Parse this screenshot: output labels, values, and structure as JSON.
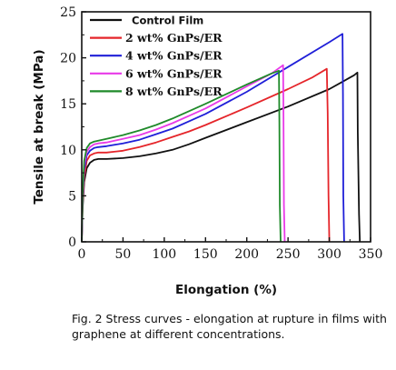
{
  "chart_data": {
    "type": "line",
    "title": "",
    "xlabel": "Elongation (%)",
    "ylabel": "Tensile at break (MPa)",
    "xlim": [
      0,
      350
    ],
    "ylim": [
      0,
      25
    ],
    "xticks": [
      0,
      50,
      100,
      150,
      200,
      250,
      300,
      350
    ],
    "yticks": [
      0,
      5,
      10,
      15,
      20,
      25
    ],
    "grid": false,
    "legend": "top-left",
    "series": [
      {
        "name": "Control Film",
        "color": "#111111",
        "x": [
          0,
          1,
          3,
          6,
          10,
          15,
          20,
          30,
          50,
          70,
          90,
          110,
          130,
          150,
          200,
          250,
          300,
          330,
          334,
          334.5,
          336,
          337
        ],
        "y": [
          0,
          3.5,
          6.5,
          8.0,
          8.6,
          8.9,
          9.0,
          9.0,
          9.1,
          9.3,
          9.6,
          10.0,
          10.6,
          11.3,
          13.0,
          14.7,
          16.6,
          18.1,
          18.4,
          12,
          3,
          0
        ]
      },
      {
        "name": "2 wt% GnPs/ER",
        "color": "#e5252a",
        "x": [
          0,
          1,
          3,
          6,
          10,
          15,
          20,
          30,
          50,
          70,
          90,
          110,
          130,
          150,
          200,
          250,
          280,
          297,
          298,
          299,
          300
        ],
        "y": [
          0,
          4.0,
          7.0,
          8.8,
          9.4,
          9.6,
          9.7,
          9.7,
          9.9,
          10.3,
          10.8,
          11.4,
          12.0,
          12.7,
          14.6,
          16.6,
          17.9,
          18.8,
          14,
          5,
          0
        ]
      },
      {
        "name": "4 wt% GnPs/ER",
        "color": "#1f1fd8",
        "x": [
          0,
          1,
          3,
          6,
          10,
          15,
          20,
          30,
          50,
          70,
          90,
          110,
          130,
          150,
          200,
          250,
          300,
          316,
          316.5,
          317,
          318
        ],
        "y": [
          0,
          4.5,
          7.8,
          9.4,
          9.9,
          10.2,
          10.3,
          10.4,
          10.7,
          11.1,
          11.7,
          12.3,
          13.1,
          13.9,
          16.3,
          19.0,
          21.7,
          22.6,
          16,
          5,
          0
        ]
      },
      {
        "name": "6 wt% GnPs/ER",
        "color": "#e83ae8",
        "x": [
          0,
          1,
          3,
          6,
          10,
          15,
          20,
          30,
          50,
          70,
          90,
          110,
          130,
          150,
          200,
          230,
          244,
          244.5,
          245,
          246
        ],
        "y": [
          0,
          4.8,
          8.3,
          9.8,
          10.3,
          10.6,
          10.7,
          10.8,
          11.2,
          11.6,
          12.2,
          12.9,
          13.7,
          14.5,
          16.9,
          18.3,
          19.2,
          14,
          4,
          0
        ]
      },
      {
        "name": "8 wt% GnPs/ER",
        "color": "#1f8a2a",
        "x": [
          0,
          1,
          3,
          6,
          10,
          15,
          20,
          30,
          50,
          70,
          90,
          110,
          130,
          150,
          200,
          230,
          239,
          239.5,
          240,
          241
        ],
        "y": [
          0,
          5.2,
          8.8,
          10.2,
          10.7,
          10.9,
          11.0,
          11.2,
          11.6,
          12.1,
          12.7,
          13.4,
          14.2,
          15.0,
          17.1,
          18.3,
          18.6,
          13,
          4,
          0
        ]
      }
    ]
  },
  "caption": "Fig. 2 Stress curves - elongation at rupture in films with graphene at different concentrations."
}
